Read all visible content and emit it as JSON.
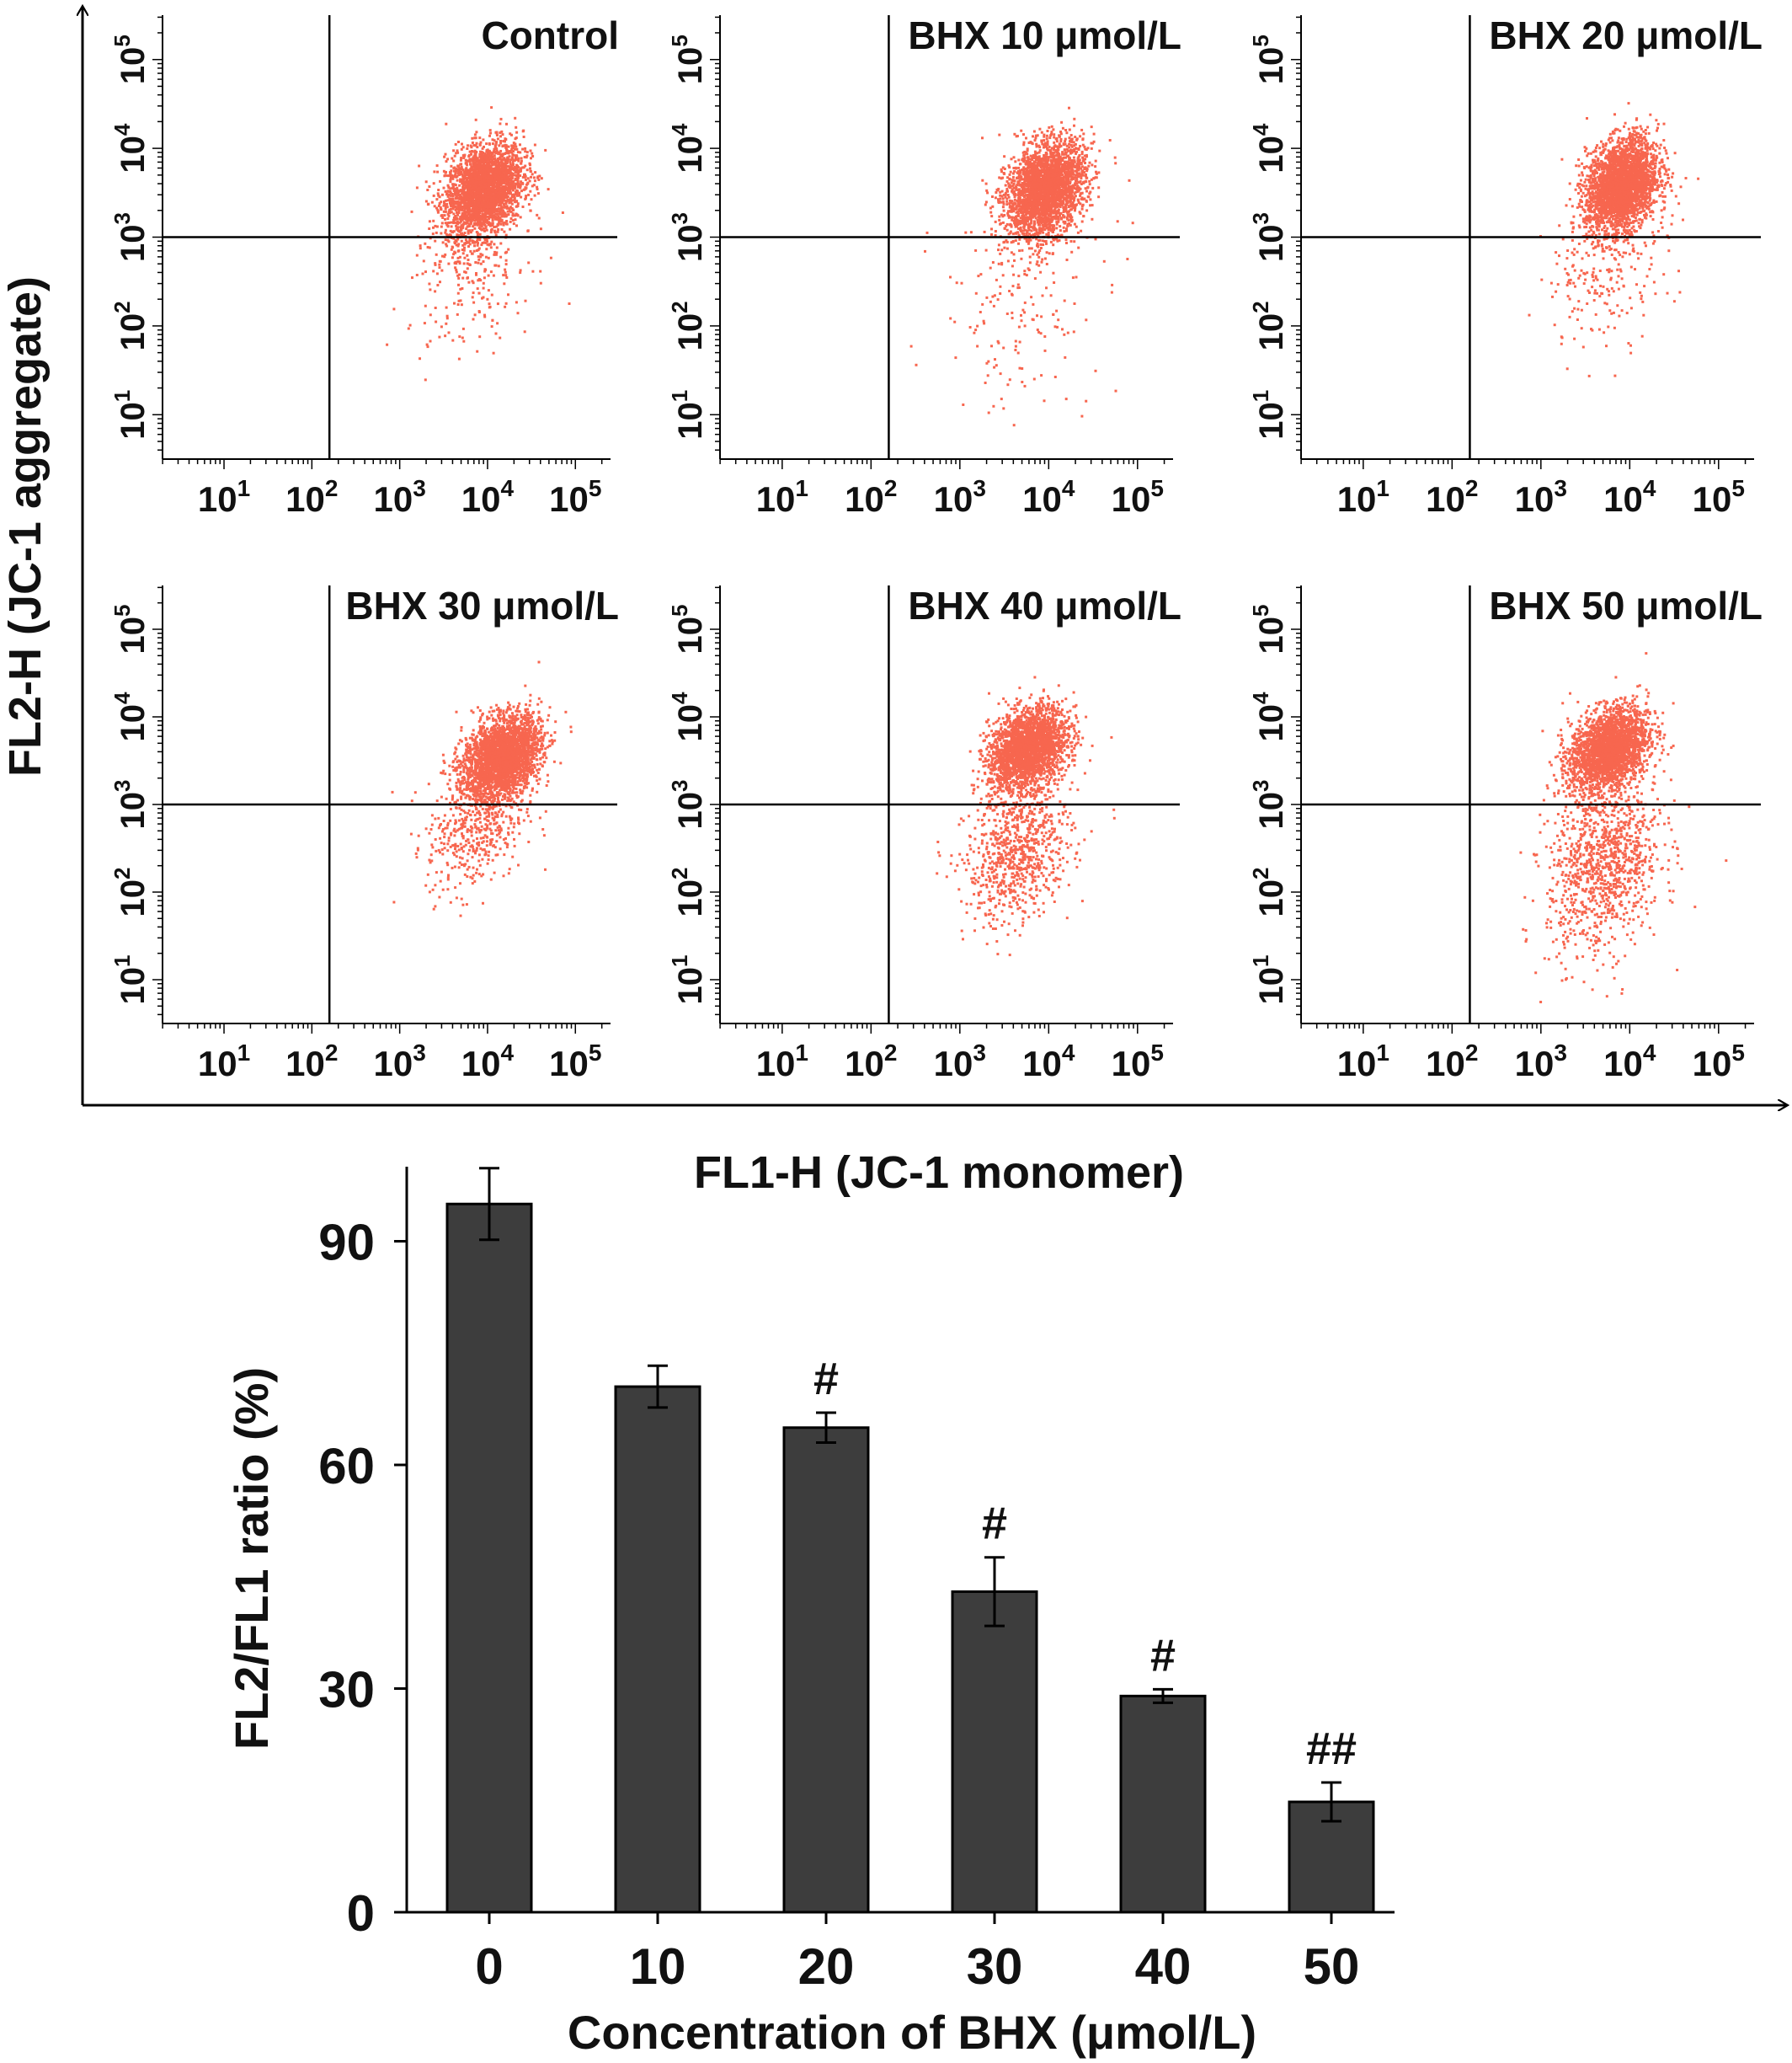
{
  "colors": {
    "dots": "#f7664f",
    "bars": "#3d3d3d",
    "axis": "#000000"
  },
  "flow": {
    "xlabel": "FL1-H (JC-1 monomer)",
    "ylabel": "FL2-H (JC-1 aggregate)",
    "tick_exponents": [
      "1",
      "2",
      "3",
      "4",
      "5"
    ],
    "panels": [
      {
        "title": "Control"
      },
      {
        "title": "BHX 10 μmol/L"
      },
      {
        "title": "BHX 20 μmol/L"
      },
      {
        "title": "BHX 30 μmol/L"
      },
      {
        "title": "BHX 40 μmol/L"
      },
      {
        "title": "BHX 50 μmol/L"
      }
    ]
  },
  "chart_data": {
    "type": "bar",
    "categories": [
      "0",
      "10",
      "20",
      "30",
      "40",
      "50"
    ],
    "values": [
      95,
      70.5,
      65,
      43,
      29,
      14.8
    ],
    "errors": [
      4.8,
      2.8,
      2.0,
      4.6,
      0.9,
      2.6
    ],
    "annotations": [
      "",
      "",
      "#",
      "#",
      "#",
      "##"
    ],
    "yticks": [
      "0",
      "30",
      "60",
      "90"
    ],
    "ylim": [
      0,
      100
    ],
    "xlabel": "Concentration of BHX (μmol/L)",
    "ylabel": "FL2/FL1 ratio (%)"
  }
}
